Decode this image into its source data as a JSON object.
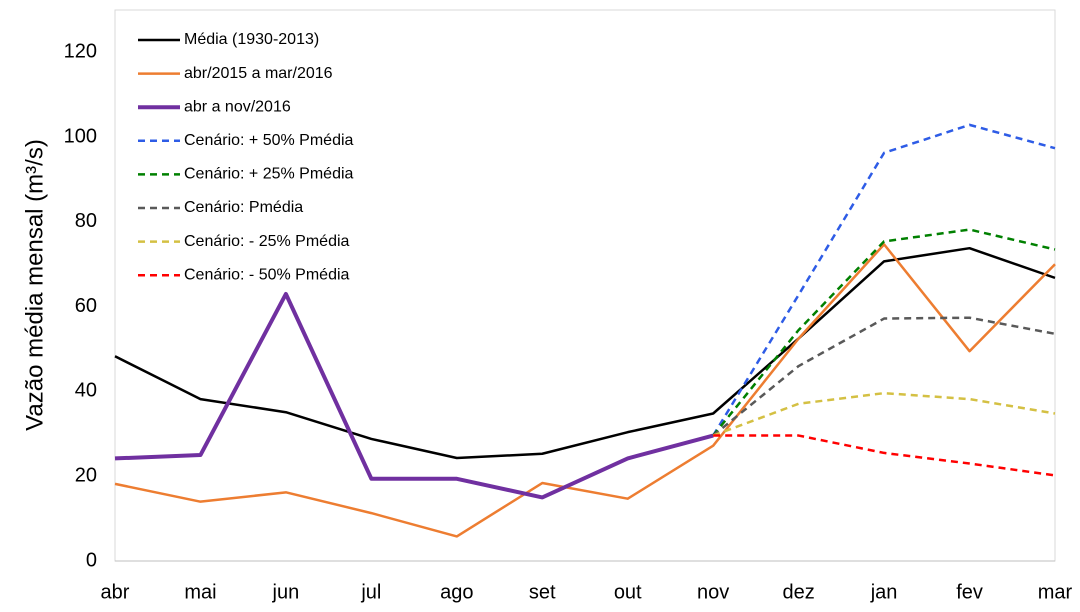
{
  "chart_data": {
    "type": "line",
    "y_label": "Vazão média mensal (m³/s)",
    "categories": [
      "abr",
      "mai",
      "jun",
      "jul",
      "ago",
      "set",
      "out",
      "nov",
      "dez",
      "jan",
      "fev",
      "mar"
    ],
    "series": [
      {
        "name": "Média (1930-2013)",
        "color": "#000000",
        "style": "solid",
        "width": 2.5,
        "values": [
          48.3,
          38.2,
          35.1,
          28.8,
          24.3,
          25.3,
          30.4,
          34.8,
          52.5,
          70.7,
          73.8,
          66.8
        ]
      },
      {
        "name": "abr/2015 a mar/2016",
        "color": "#ed7d31",
        "style": "solid",
        "width": 2.5,
        "values": [
          18.2,
          14.0,
          16.2,
          11.3,
          5.8,
          18.4,
          14.7,
          27.2,
          52.5,
          74.7,
          49.5,
          70.0
        ]
      },
      {
        "name": "abr a nov/2016",
        "color": "#7030a0",
        "style": "solid",
        "width": 4,
        "values": [
          24.2,
          25.0,
          63.0,
          19.4,
          19.4,
          15.0,
          24.2,
          29.6,
          null,
          null,
          null,
          null
        ]
      },
      {
        "name": "Cenário: + 50% Pmédia",
        "color": "#2e5ce6",
        "style": "dashed",
        "width": 2.5,
        "values": [
          null,
          null,
          null,
          null,
          null,
          null,
          null,
          29.6,
          62.8,
          96.3,
          102.9,
          97.4
        ]
      },
      {
        "name": "Cenário: + 25% Pmédia",
        "color": "#008000",
        "style": "dashed",
        "width": 2.5,
        "values": [
          null,
          null,
          null,
          null,
          null,
          null,
          null,
          29.6,
          54.5,
          75.4,
          78.2,
          73.5
        ]
      },
      {
        "name": "Cenário: Pmédia",
        "color": "#595959",
        "style": "dashed",
        "width": 2.5,
        "values": [
          null,
          null,
          null,
          null,
          null,
          null,
          null,
          29.6,
          46.0,
          57.2,
          57.4,
          53.6
        ]
      },
      {
        "name": "Cenário: - 25% Pmédia",
        "color": "#d4c043",
        "style": "dashed",
        "width": 2.5,
        "values": [
          null,
          null,
          null,
          null,
          null,
          null,
          null,
          29.6,
          37.1,
          39.6,
          38.2,
          34.8
        ]
      },
      {
        "name": "Cenário: - 50% Pmédia",
        "color": "#ff0000",
        "style": "dashed",
        "width": 2.5,
        "values": [
          null,
          null,
          null,
          null,
          null,
          null,
          null,
          29.6,
          29.6,
          25.5,
          23.0,
          20.2
        ]
      }
    ],
    "ylim": [
      0,
      130
    ],
    "yticks": [
      0,
      20,
      40,
      60,
      80,
      100,
      120
    ],
    "grid": false,
    "legend": "upper left"
  }
}
